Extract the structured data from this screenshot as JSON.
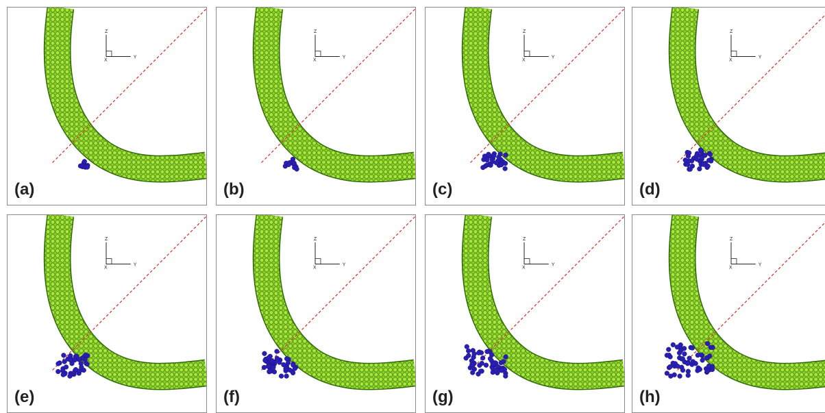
{
  "panels": [
    {
      "label": "(a)",
      "cluster": 0.05
    },
    {
      "label": "(b)",
      "cluster": 0.15
    },
    {
      "label": "(c)",
      "cluster": 0.45
    },
    {
      "label": "(d)",
      "cluster": 0.55
    },
    {
      "label": "(e)",
      "cluster": 0.6
    },
    {
      "label": "(f)",
      "cluster": 0.7
    },
    {
      "label": "(g)",
      "cluster": 0.85
    },
    {
      "label": "(h)",
      "cluster": 1.0
    }
  ],
  "axes": {
    "z_label": "Z",
    "y_label": "Y",
    "x_label": "X"
  },
  "colors": {
    "tube_fill": "#8fd42a",
    "tube_stroke": "#2f6a0a",
    "particles": "#2a1fb3",
    "diagonal": "#d42a1f",
    "frame": "#8a8a8a"
  }
}
